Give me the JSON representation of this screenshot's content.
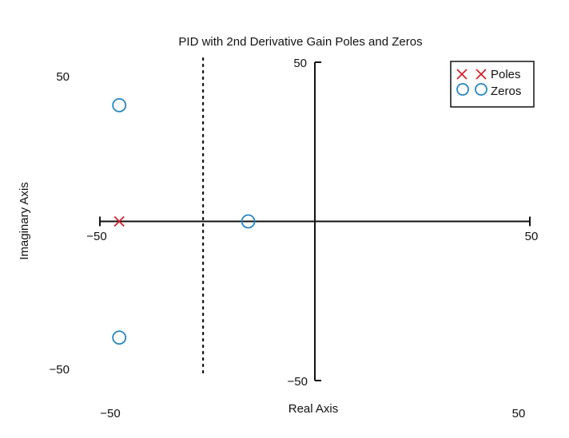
{
  "chart_data": {
    "type": "scatter",
    "title": "PID with 2nd Derivative Gain Poles and Zeros",
    "xlabel": "Real Axis",
    "ylabel": "Imaginary Axis",
    "xlim": [
      -50,
      50
    ],
    "ylim": [
      -50,
      50
    ],
    "grid": false,
    "legend_position": "top-right",
    "colors": {
      "poles": "#d0242b",
      "zeros": "#2486c1",
      "axis": "#111111"
    },
    "series": [
      {
        "name": "Poles",
        "marker": "x",
        "points": [
          {
            "x": -45.5,
            "y": 0
          }
        ]
      },
      {
        "name": "Zeros",
        "marker": "o",
        "points": [
          {
            "x": -45.5,
            "y": 36.5
          },
          {
            "x": -15.5,
            "y": 0
          },
          {
            "x": -45.5,
            "y": -36.5
          }
        ]
      }
    ],
    "reference_line": {
      "style": "dotted",
      "x": -26
    },
    "axis_ticks": {
      "imag_top": "50",
      "imag_bottom": "−50",
      "real_left": "−50",
      "real_right": "50"
    },
    "frame_ticks": {
      "y_top": "50",
      "y_bottom": "−50",
      "x_left": "−50",
      "x_right": "50"
    }
  }
}
